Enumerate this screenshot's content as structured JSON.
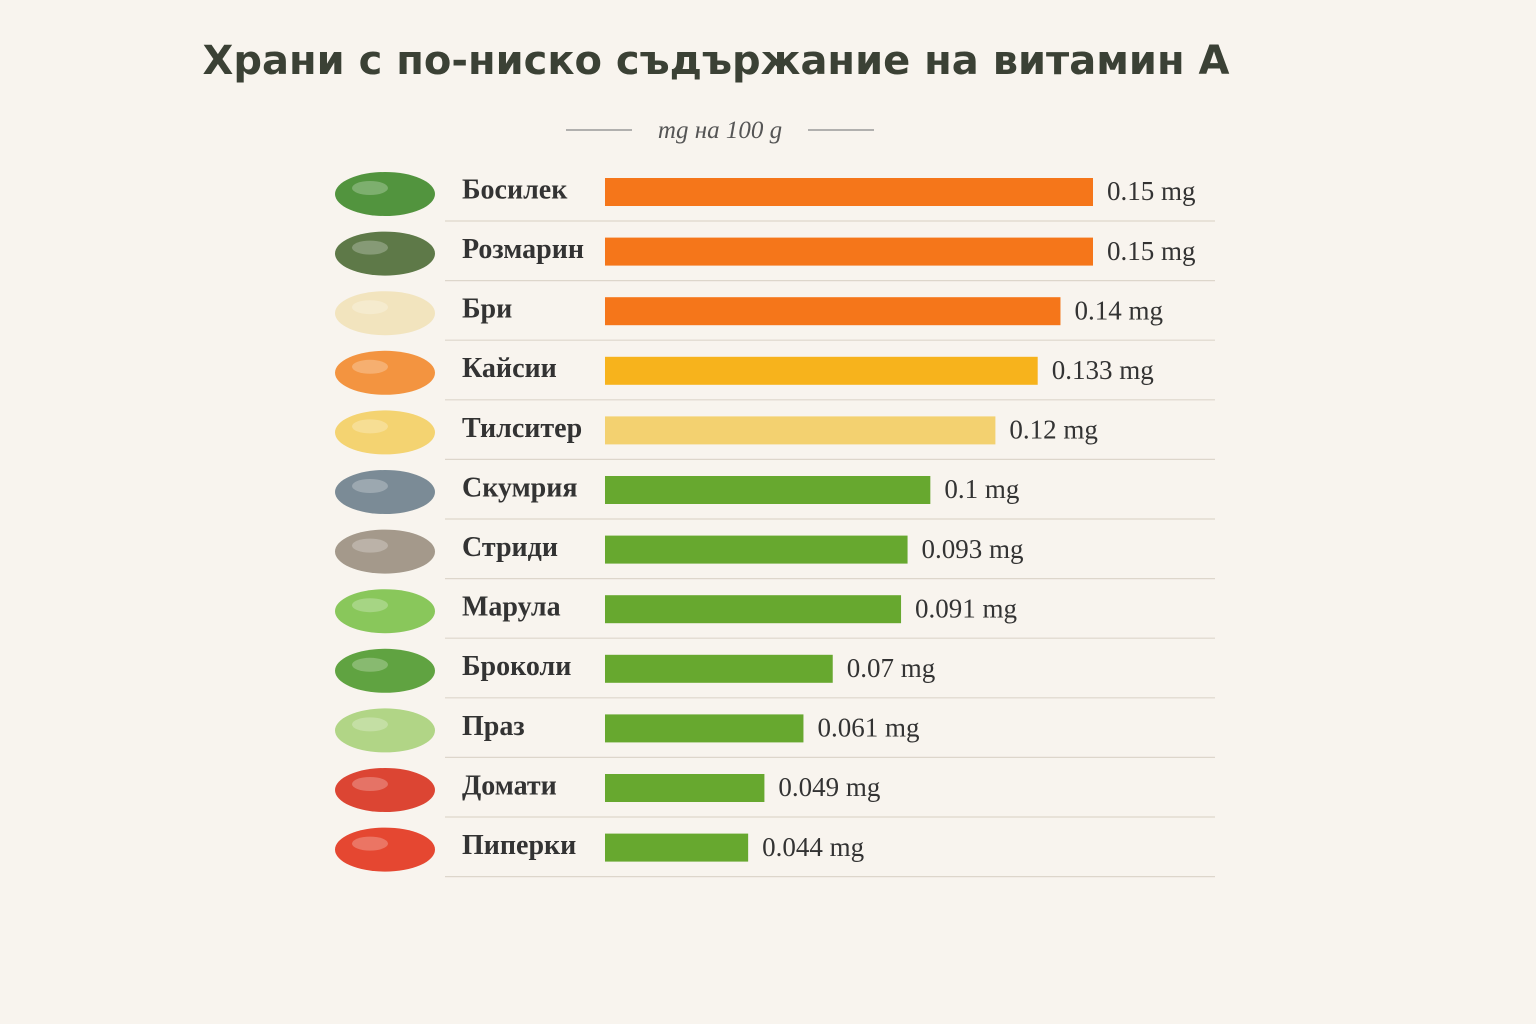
{
  "chart_data": {
    "type": "bar",
    "orientation": "horizontal",
    "title": "Храни с по-ниско съдържание на витамин А",
    "subtitle": "mg на 100 g",
    "categories": [
      "Босилек",
      "Розмарин",
      "Бри",
      "Кайсии",
      "Тилситер",
      "Скумрия",
      "Стриди",
      "Марула",
      "Броколи",
      "Праз",
      "Домати",
      "Пиперки"
    ],
    "values": [
      0.15,
      0.15,
      0.14,
      0.133,
      0.12,
      0.1,
      0.093,
      0.091,
      0.07,
      0.061,
      0.049,
      0.044
    ],
    "value_labels": [
      "0.15 mg",
      "0.15 mg",
      "0.14 mg",
      "0.133 mg",
      "0.12 mg",
      "0.1 mg",
      "0.093 mg",
      "0.091 mg",
      "0.07 mg",
      "0.061 mg",
      "0.049 mg",
      "0.044 mg"
    ],
    "colors": [
      "#f5761a",
      "#f5761a",
      "#f5761a",
      "#f7b31c",
      "#f3d170",
      "#67a82f",
      "#67a82f",
      "#67a82f",
      "#67a82f",
      "#67a82f",
      "#67a82f",
      "#67a82f"
    ]
  }
}
